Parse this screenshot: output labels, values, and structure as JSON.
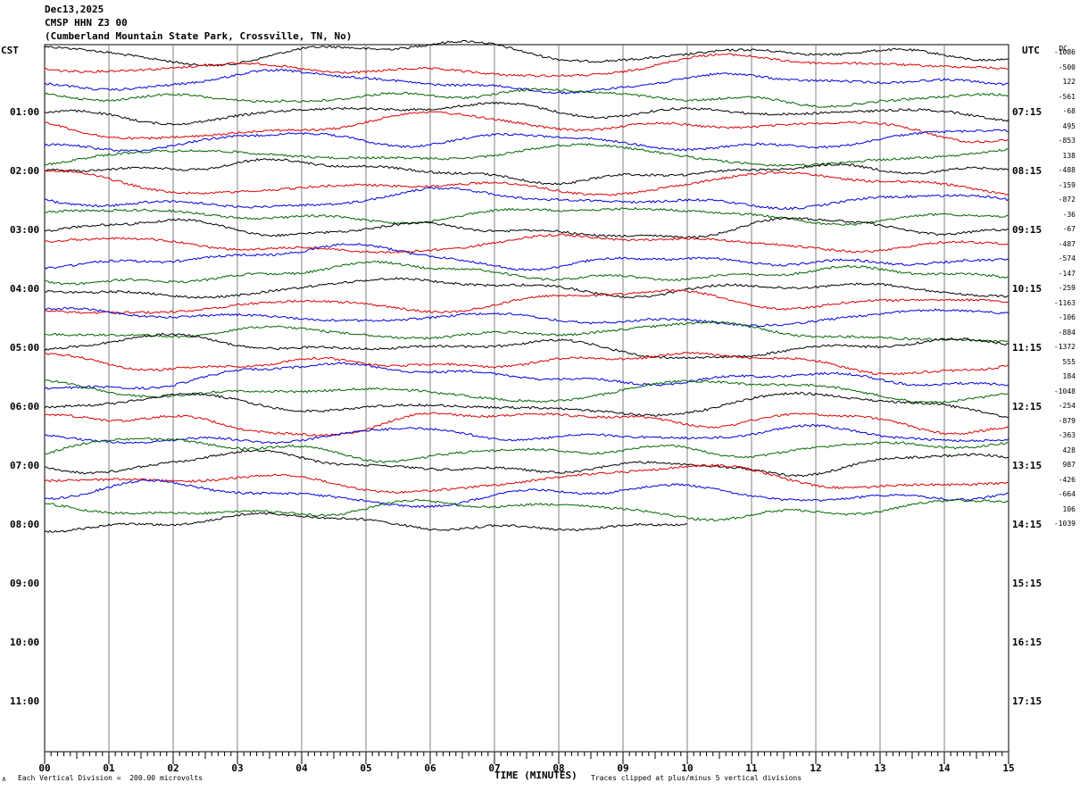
{
  "header": {
    "date": "Dec13,2025",
    "station": "CMSP HHN Z3 00",
    "location": "(Cumberland Mountain State Park, Crossville, TN, No)"
  },
  "left_tz": "CST",
  "right_tz": "UTC",
  "dc_header": "DC",
  "footer": {
    "scale": "Each Vertical Division =  200.00 microvolts",
    "xlabel": "TIME (MINUTES)",
    "clip": "Traces clipped at plus/minus 5 vertical divisions",
    "mark": "∧"
  },
  "colors": {
    "cycle": [
      "#000000",
      "#dd0000",
      "#0000dd",
      "#006600"
    ],
    "grid": "#808080"
  },
  "chart_data": {
    "type": "line",
    "title": "CMSP HHN Z3 00",
    "xlabel": "TIME (MINUTES)",
    "x_ticks": [
      "00",
      "01",
      "02",
      "03",
      "04",
      "05",
      "06",
      "07",
      "08",
      "09",
      "10",
      "11",
      "12",
      "13",
      "14",
      "15"
    ],
    "xlim": [
      0,
      15
    ],
    "left_time_labels": [
      "01:00",
      "02:00",
      "03:00",
      "04:00",
      "05:00",
      "06:00",
      "07:00",
      "08:00",
      "09:00",
      "10:00",
      "11:00"
    ],
    "right_time_labels": [
      "07:15",
      "08:15",
      "09:15",
      "10:15",
      "11:15",
      "12:15",
      "13:15",
      "14:15",
      "15:15",
      "16:15",
      "17:15"
    ],
    "trace_count": 33,
    "last_trace_end_minute": 10,
    "dc_offsets": [
      "-1086",
      "-500",
      "122",
      "-561",
      "-68",
      "495",
      "-853",
      "138",
      "-488",
      "-159",
      "-872",
      "-36",
      "-67",
      "-487",
      "-574",
      "-147",
      "-259",
      "-1163",
      "-106",
      "-884",
      "-1372",
      "555",
      "184",
      "-1048",
      "-254",
      "-879",
      "-363",
      "428",
      "987",
      "-426",
      "-664",
      "106",
      "-1039"
    ],
    "grid": true
  }
}
